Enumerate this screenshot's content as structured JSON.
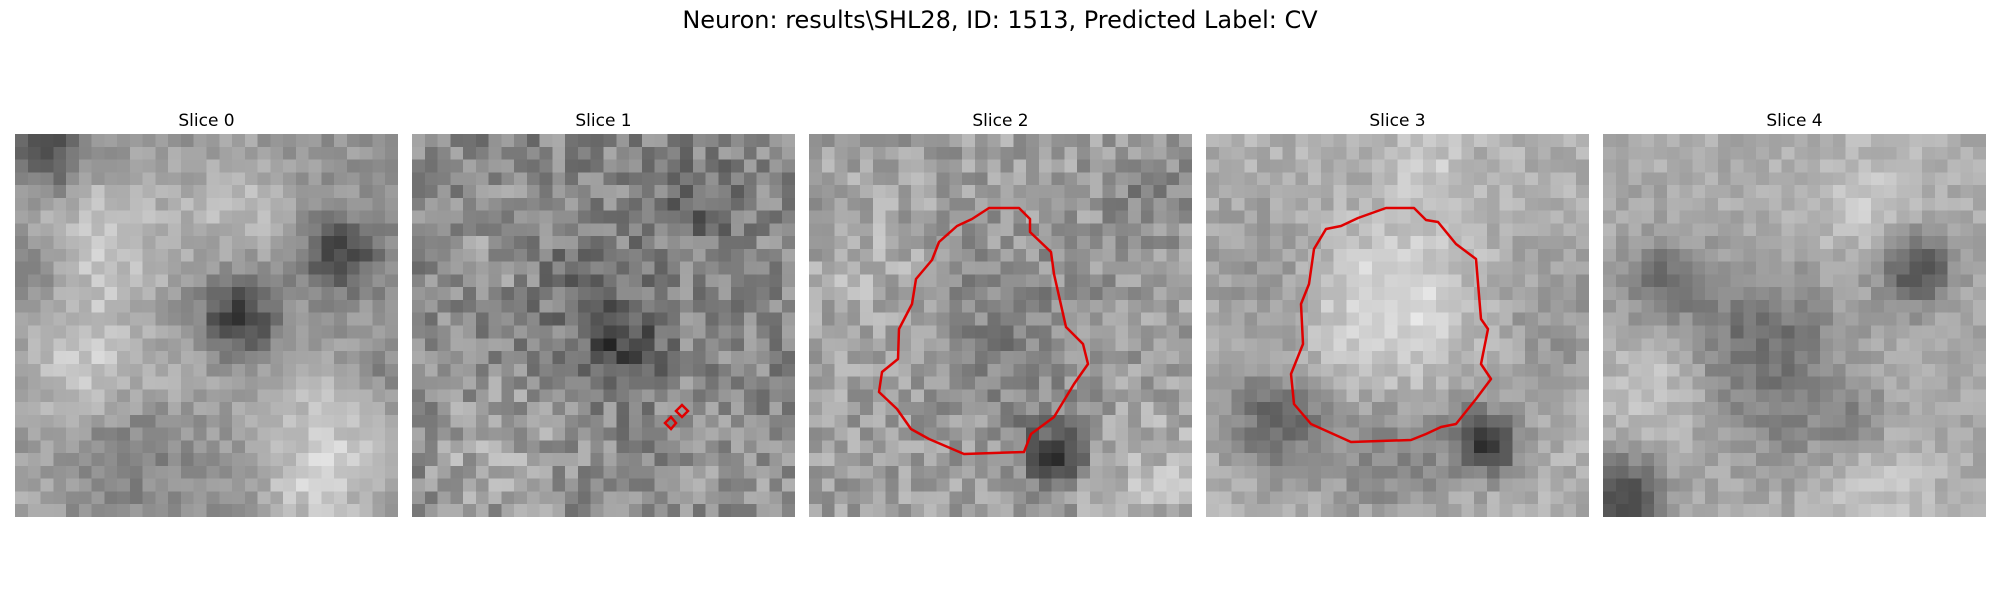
{
  "figure": {
    "title": "Neuron: results\\SHL28, ID: 1513, Predicted Label: CV",
    "contour_color": "#e00000",
    "panels": [
      {
        "title": "Slice 0"
      },
      {
        "title": "Slice 1"
      },
      {
        "title": "Slice 2"
      },
      {
        "title": "Slice 3"
      },
      {
        "title": "Slice 4"
      }
    ]
  }
}
